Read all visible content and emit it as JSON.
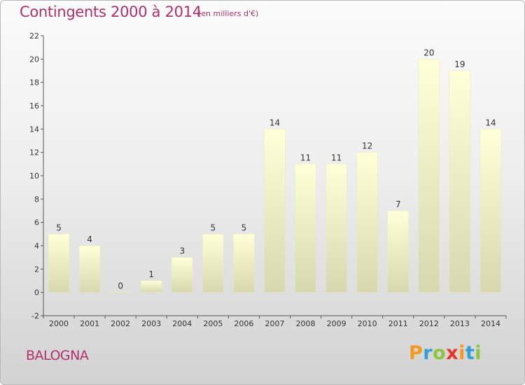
{
  "title": "Contingents 2000 à 2014",
  "subtitle": "(en milliers d'€)",
  "commune": "BALOGNA",
  "logo": {
    "letters": [
      "P",
      "r",
      "o",
      "x",
      "i",
      "t",
      "i"
    ],
    "colors": [
      "#f39a1e",
      "#2f9fd8",
      "#8cc63f",
      "#e8332a",
      "#f39a1e",
      "#2f9fd8",
      "#8cc63f"
    ]
  },
  "chart_data": {
    "type": "bar",
    "categories": [
      "2000",
      "2001",
      "2002",
      "2003",
      "2004",
      "2005",
      "2006",
      "2007",
      "2008",
      "2009",
      "2010",
      "2011",
      "2012",
      "2013",
      "2014"
    ],
    "values": [
      5,
      4,
      0,
      1,
      3,
      5,
      5,
      14,
      11,
      11,
      12,
      7,
      20,
      19,
      14
    ],
    "ylim": [
      -2,
      22
    ],
    "yticks": [
      -2,
      0,
      2,
      4,
      6,
      8,
      10,
      12,
      14,
      16,
      18,
      20,
      22
    ],
    "grid": false,
    "bar_color_top": "#ffffd8",
    "bar_color_bottom": "#d8d8b0"
  }
}
